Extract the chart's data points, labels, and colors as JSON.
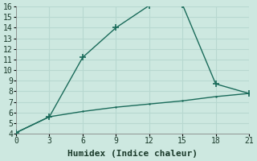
{
  "xlabel": "Humidex (Indice chaleur)",
  "ylabel": "",
  "background_color": "#cde8e0",
  "line_color": "#1a6b5a",
  "grid_color": "#b8d8d0",
  "xlim": [
    0,
    21
  ],
  "ylim": [
    4,
    16
  ],
  "xticks": [
    0,
    3,
    6,
    9,
    12,
    15,
    18,
    21
  ],
  "yticks": [
    4,
    5,
    6,
    7,
    8,
    9,
    10,
    11,
    12,
    13,
    14,
    15,
    16
  ],
  "line1_x": [
    0,
    3,
    6,
    9,
    12,
    15,
    18,
    21
  ],
  "line1_y": [
    4.1,
    5.6,
    11.2,
    14.0,
    16.1,
    16.2,
    8.7,
    7.8
  ],
  "line2_x": [
    0,
    3,
    6,
    9,
    12,
    15,
    18,
    21
  ],
  "line2_y": [
    4.1,
    5.6,
    6.1,
    6.5,
    6.8,
    7.1,
    7.5,
    7.8
  ],
  "line_width": 1.0,
  "marker_size": 4,
  "font_size": 8
}
